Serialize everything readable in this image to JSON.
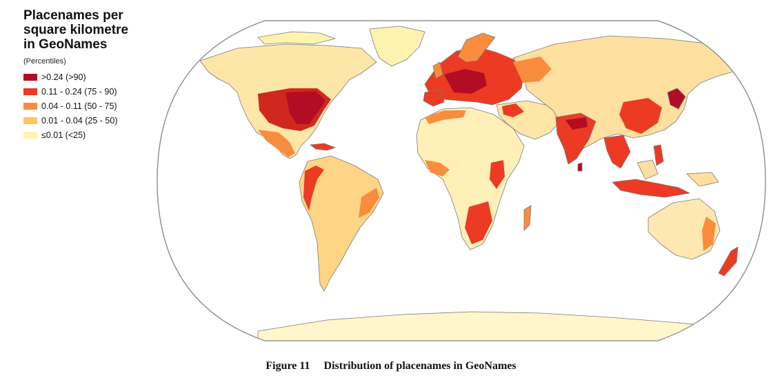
{
  "legend": {
    "title_lines": [
      "Placenames per",
      "square kilometre",
      "in GeoNames"
    ],
    "subtitle": "(Percentiles)",
    "items": [
      {
        "label": ">0.24 (>90)",
        "color": "#b30d26"
      },
      {
        "label": "0.11 - 0.24 (75 - 90)",
        "color": "#ec3b22"
      },
      {
        "label": "0.04 - 0.11 (50 - 75)",
        "color": "#fa8c3e"
      },
      {
        "label": "0.01 - 0.04 (25 - 50)",
        "color": "#fdc563"
      },
      {
        "label": "≤0.01 (<25)",
        "color": "#fff3b0"
      }
    ]
  },
  "map": {
    "projection": "Robinson",
    "ocean_color": "#ffffff",
    "outline_color": "#8a8a8a"
  },
  "caption": {
    "figure_number": "Figure 11",
    "text": "Distribution of placenames in GeoNames"
  }
}
